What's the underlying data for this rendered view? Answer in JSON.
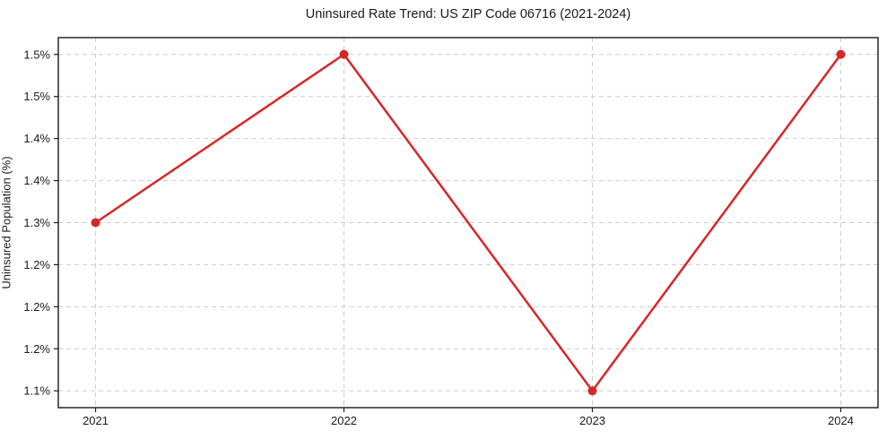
{
  "page": {
    "background": "#ffffff"
  },
  "chart_data": {
    "type": "line",
    "title": "Uninsured Rate Trend: US ZIP Code 06716 (2021-2024)",
    "xlabel": "",
    "ylabel": "Uninsured Population (%)",
    "x": [
      2021,
      2022,
      2023,
      2024
    ],
    "x_tick_labels": [
      "2021",
      "2022",
      "2023",
      "2024"
    ],
    "series": [
      {
        "name": "uninsured-rate",
        "values": [
          1.3,
          1.5,
          1.1,
          1.5
        ]
      }
    ],
    "y_ticks": [
      1.5,
      1.45,
      1.4,
      1.35,
      1.3,
      1.25,
      1.2,
      1.15,
      1.1
    ],
    "y_tick_labels": [
      "1.5%",
      "1.5%",
      "1.4%",
      "1.4%",
      "1.3%",
      "1.2%",
      "1.2%",
      "1.2%",
      "1.1%"
    ],
    "xlim": [
      2020.85,
      2024.15
    ],
    "ylim": [
      1.08,
      1.52
    ],
    "grid": true,
    "grid_style": "dashed",
    "legend_position": "none",
    "colors": {
      "line": "#d62728",
      "marker": "#d62728",
      "grid": "#cccccc",
      "spine": "#1a1a1a",
      "text": "#1a1a1a"
    },
    "marker_radius": 5,
    "line_width": 2.5
  }
}
